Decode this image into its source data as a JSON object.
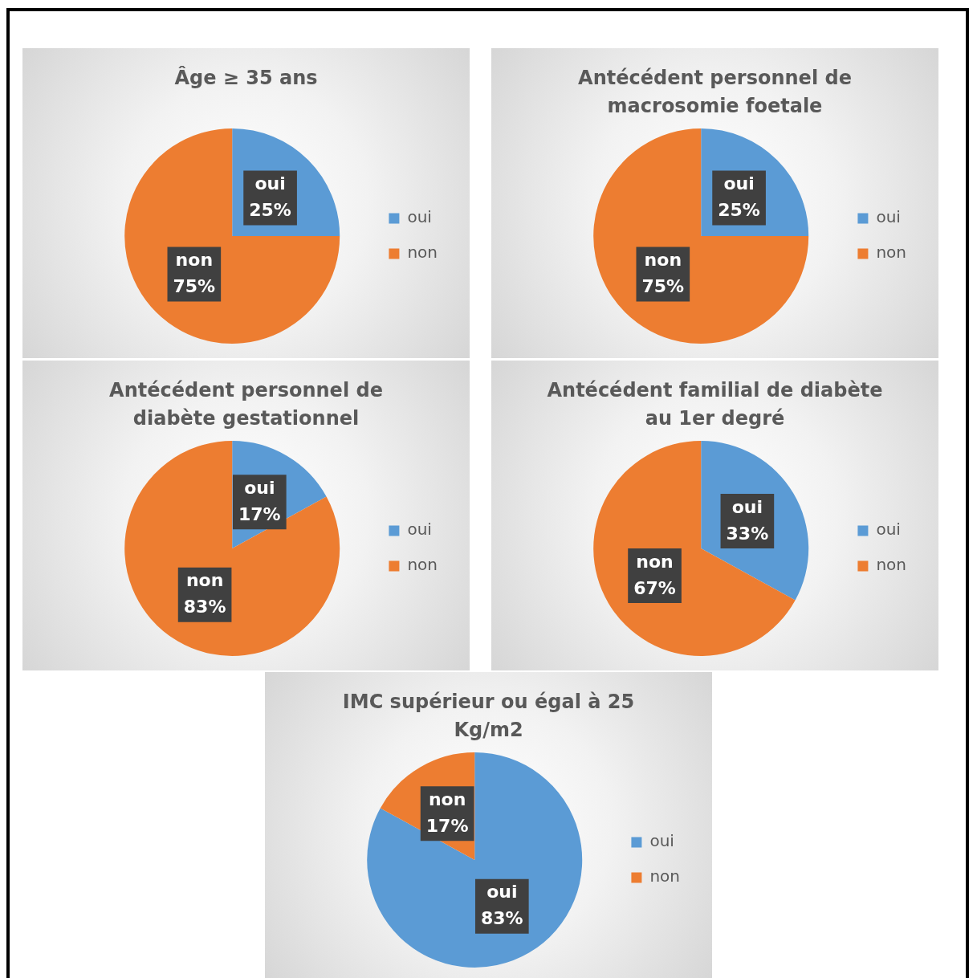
{
  "chart_data": [
    {
      "type": "pie",
      "title": "Âge ≥ 35 ans",
      "categories": [
        "oui",
        "non"
      ],
      "values": [
        25,
        75
      ],
      "colors": [
        "#5b9bd5",
        "#ed7d31"
      ],
      "value_labels": [
        "25%",
        "75%"
      ],
      "legend": "right"
    },
    {
      "type": "pie",
      "title": "Antécédent personnel de macrosomie foetale",
      "categories": [
        "oui",
        "non"
      ],
      "values": [
        25,
        75
      ],
      "colors": [
        "#5b9bd5",
        "#ed7d31"
      ],
      "value_labels": [
        "25%",
        "75%"
      ],
      "legend": "right"
    },
    {
      "type": "pie",
      "title": "Antécédent personnel  de diabète gestationnel",
      "categories": [
        "oui",
        "non"
      ],
      "values": [
        17,
        83
      ],
      "colors": [
        "#5b9bd5",
        "#ed7d31"
      ],
      "value_labels": [
        "17%",
        "83%"
      ],
      "legend": "right"
    },
    {
      "type": "pie",
      "title": "Antécédent familial de diabète au 1er degré",
      "categories": [
        "oui",
        "non"
      ],
      "values": [
        33,
        67
      ],
      "colors": [
        "#5b9bd5",
        "#ed7d31"
      ],
      "value_labels": [
        "33%",
        "67%"
      ],
      "legend": "right"
    },
    {
      "type": "pie",
      "title": "IMC supérieur ou égal à 25 Kg/m2",
      "categories": [
        "oui",
        "non"
      ],
      "values": [
        83,
        17
      ],
      "colors": [
        "#5b9bd5",
        "#ed7d31"
      ],
      "value_labels": [
        "83%",
        "17%"
      ],
      "legend": "right"
    }
  ]
}
